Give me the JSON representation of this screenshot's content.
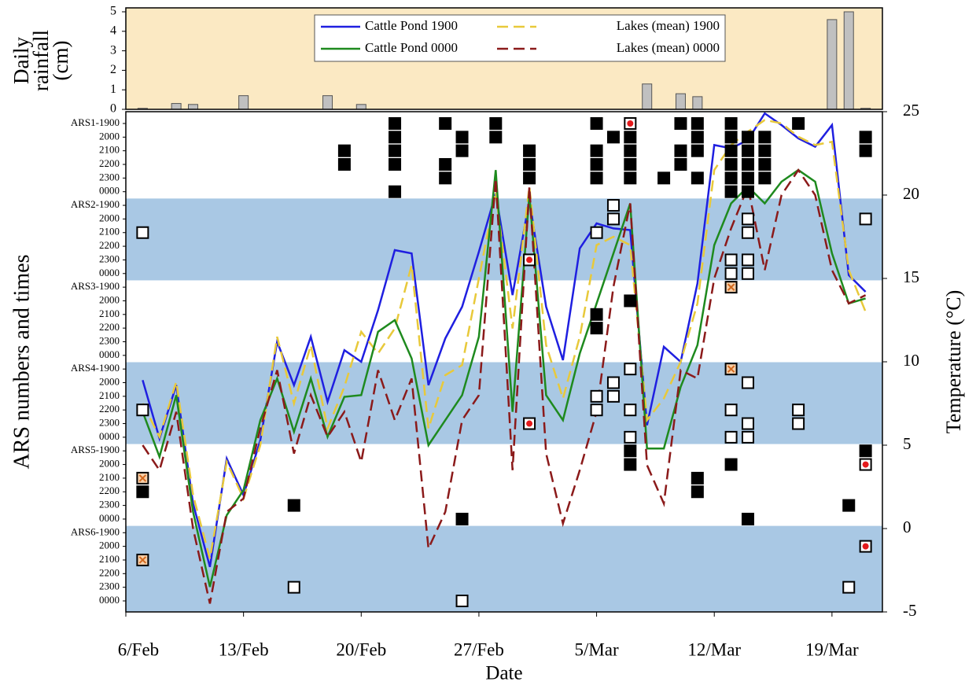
{
  "chart_data": [
    {
      "type": "bar",
      "ylabel": [
        "Daily",
        "rainfall",
        "(cm)"
      ],
      "x": [
        1,
        3,
        4,
        7,
        12,
        14,
        31,
        33,
        34,
        42,
        43,
        44
      ],
      "values": [
        0.05,
        0.3,
        0.25,
        0.7,
        0.7,
        0.25,
        1.3,
        0.8,
        0.65,
        4.6,
        5.0,
        0.05
      ],
      "color": "#c0c0c0",
      "background": "#fbe9c3",
      "xlim": [
        0,
        45
      ],
      "ylim": [
        0,
        5
      ],
      "yticks": [
        0,
        1,
        2,
        3,
        4,
        5
      ]
    },
    {
      "type": "line",
      "xlabel": "Date",
      "ylabel": "ARS numbers and times",
      "y2label": "Temperature (°C)",
      "xlim": [
        0,
        45
      ],
      "xticks": [
        {
          "value": 0,
          "label": "6/Feb"
        },
        {
          "value": 7,
          "label": "13/Feb"
        },
        {
          "value": 14,
          "label": "20/Feb"
        },
        {
          "value": 21,
          "label": "27/Feb"
        },
        {
          "value": 28,
          "label": "5/Mar"
        },
        {
          "value": 35,
          "label": "12/Mar"
        },
        {
          "value": 42,
          "label": "19/Mar"
        }
      ],
      "ycategories": [
        "ARS1-1900",
        "2000",
        "2100",
        "2200",
        "2300",
        "0000",
        "ARS2-1900",
        "2000",
        "2100",
        "2200",
        "2300",
        "0000",
        "ARS3-1900",
        "2000",
        "2100",
        "2200",
        "2300",
        "0000",
        "ARS4-1900",
        "2000",
        "2100",
        "2200",
        "2300",
        "0000",
        "ARS5-1900",
        "2000",
        "2100",
        "2200",
        "2300",
        "0000",
        "ARS6-1900",
        "2000",
        "2100",
        "2200",
        "2300",
        "0000"
      ],
      "band_color": "#a9c8e4",
      "y2lim": [
        -5,
        25
      ],
      "y2ticks": [
        -5,
        0,
        5,
        10,
        15,
        20,
        25
      ],
      "x": [
        1,
        2,
        3,
        4,
        5,
        6,
        7,
        8,
        9,
        10,
        11,
        12,
        13,
        14,
        15,
        16,
        17,
        18,
        19,
        20,
        21,
        22,
        23,
        24,
        25,
        26,
        27,
        28,
        29,
        30,
        31,
        32,
        33,
        34,
        35,
        36,
        37,
        38,
        39,
        40,
        41,
        42,
        43,
        44
      ],
      "series": [
        {
          "name": "Cattle Pond 1900",
          "color": "#1f1fe0",
          "dash": false,
          "axis": "y2",
          "values": [
            8.9,
            5.4,
            8.6,
            1.5,
            -2.3,
            4.2,
            2.0,
            5.3,
            11.2,
            8.6,
            11.5,
            7.6,
            10.7,
            10.0,
            13.1,
            16.7,
            16.5,
            8.6,
            11.4,
            13.3,
            16.6,
            20.1,
            14.0,
            19.7,
            13.3,
            10.1,
            16.8,
            18.3,
            18.0,
            17.9,
            6.2,
            10.9,
            10.0,
            14.7,
            23.0,
            22.8,
            23.3,
            24.9,
            24.2,
            23.4,
            22.9,
            24.2,
            15.2,
            14.2
          ]
        },
        {
          "name": "Lakes (mean) 1900",
          "color": "#e8c93a",
          "dash": true,
          "axis": "y2",
          "values": [
            7.5,
            5.5,
            8.8,
            2.0,
            -1.8,
            4.0,
            1.8,
            5.0,
            11.5,
            7.5,
            11.0,
            6.0,
            8.5,
            11.8,
            10.5,
            12.0,
            15.8,
            6.0,
            9.2,
            9.8,
            15.0,
            20.2,
            12.0,
            20.5,
            11.0,
            7.8,
            11.5,
            17.0,
            17.5,
            17.0,
            6.5,
            7.8,
            10.0,
            13.5,
            21.5,
            23.0,
            23.8,
            24.5,
            24.3,
            23.5,
            23.0,
            23.2,
            15.5,
            13.0
          ]
        },
        {
          "name": "Cattle Pond 0000",
          "color": "#1e8a1e",
          "dash": false,
          "axis": "y2",
          "values": [
            7.0,
            4.3,
            8.0,
            1.0,
            -3.5,
            0.8,
            2.3,
            6.5,
            9.0,
            5.8,
            9.0,
            5.5,
            7.9,
            8.0,
            11.8,
            12.5,
            10.2,
            5.0,
            6.5,
            8.0,
            11.5,
            21.5,
            7.0,
            20.0,
            8.0,
            6.5,
            10.5,
            13.5,
            16.5,
            19.5,
            4.8,
            4.8,
            8.5,
            11.0,
            17.0,
            19.5,
            20.5,
            19.5,
            20.8,
            21.5,
            20.8,
            16.5,
            13.5,
            13.8
          ]
        },
        {
          "name": "Lakes (mean) 0000",
          "color": "#8b1a1a",
          "dash": true,
          "axis": "y2",
          "values": [
            5.0,
            3.5,
            7.0,
            0.0,
            -4.5,
            1.0,
            1.8,
            6.0,
            9.5,
            4.5,
            8.0,
            5.5,
            7.0,
            4.0,
            9.5,
            6.5,
            9.0,
            -1.2,
            1.0,
            6.5,
            8.0,
            21.0,
            3.5,
            20.5,
            4.5,
            0.3,
            3.5,
            7.0,
            14.5,
            19.5,
            3.8,
            1.5,
            9.5,
            9.0,
            15.0,
            18.0,
            20.5,
            15.5,
            20.0,
            21.5,
            20.0,
            15.5,
            13.5,
            14.0
          ]
        }
      ],
      "markers": [
        {
          "marker": "filled",
          "x": [
            1,
            10,
            13,
            13,
            16,
            16,
            16,
            16,
            16,
            19,
            19,
            19,
            20,
            20,
            20,
            22,
            22,
            24,
            24,
            24,
            28,
            28,
            28,
            28,
            28,
            28,
            29,
            30,
            30,
            30,
            30,
            30,
            30,
            30,
            32,
            33,
            33,
            33,
            34,
            34,
            34,
            34,
            34,
            34,
            36,
            36,
            36,
            36,
            36,
            36,
            36,
            37,
            37,
            37,
            37,
            37,
            37,
            38,
            38,
            38,
            38,
            40,
            43,
            44,
            44,
            44
          ],
          "y": [
            27,
            28,
            2,
            3,
            0,
            1,
            2,
            3,
            5,
            0,
            3,
            4,
            1,
            2,
            29,
            0,
            1,
            2,
            3,
            4,
            0,
            2,
            3,
            4,
            14,
            15,
            1,
            1,
            2,
            3,
            4,
            13,
            24,
            25,
            4,
            0,
            2,
            3,
            0,
            1,
            2,
            4,
            26,
            27,
            0,
            1,
            2,
            3,
            4,
            5,
            25,
            1,
            2,
            3,
            4,
            5,
            29,
            1,
            2,
            3,
            4,
            0,
            28,
            1,
            2,
            24
          ]
        },
        {
          "marker": "open",
          "x": [
            1,
            1,
            10,
            20,
            28,
            28,
            28,
            29,
            29,
            29,
            29,
            30,
            30,
            30,
            36,
            36,
            36,
            36,
            37,
            37,
            37,
            37,
            37,
            37,
            37,
            40,
            40,
            43,
            44
          ],
          "y": [
            8,
            21,
            34,
            35,
            8,
            20,
            21,
            6,
            7,
            19,
            20,
            18,
            21,
            23,
            10,
            11,
            21,
            23,
            7,
            8,
            10,
            11,
            19,
            22,
            23,
            21,
            22,
            34,
            7
          ]
        },
        {
          "marker": "dot",
          "x": [
            24,
            24,
            30,
            44,
            44
          ],
          "y": [
            10,
            22,
            0,
            25,
            31
          ]
        },
        {
          "marker": "cross",
          "x": [
            1,
            1,
            36,
            36
          ],
          "y": [
            26,
            32,
            12,
            18
          ]
        }
      ]
    }
  ]
}
